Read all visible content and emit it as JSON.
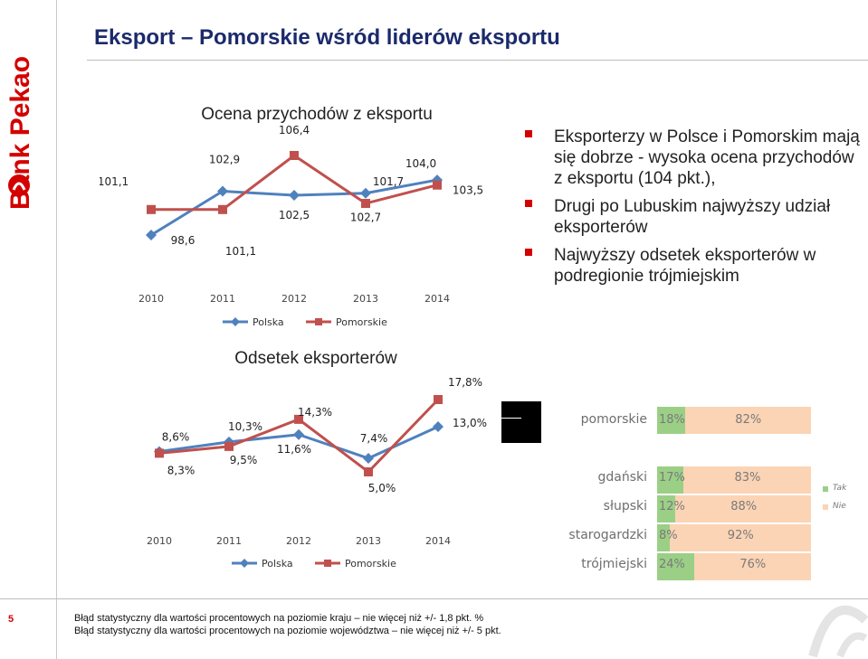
{
  "brand": {
    "name": "Bank Pekao"
  },
  "page": {
    "title": "Eksport – Pomorskie wśród liderów eksportu",
    "number": "5"
  },
  "bullets": [
    "Eksporterzy w Polsce i Pomorskim mają się dobrze - wysoka ocena przychodów z eksportu (104 pkt.),",
    "Drugi po Lubuskim najwyższy udział eksporterów",
    "Najwyższy odsetek eksporterów w podregionie trójmiejskim"
  ],
  "footnotes": [
    "Błąd statystyczny dla wartości procentowych na poziomie kraju – nie więcej niż +/- 1,8 pkt. %",
    "Błąd statystyczny dla wartości procentowych na poziomie województwa – nie więcej niż +/- 5 pkt."
  ],
  "colors": {
    "polska": "#4f81bd",
    "pomorskie": "#c0504d",
    "tak": "#9bcf86",
    "nie": "#fbd4b5",
    "accent": "#d40000"
  },
  "chart_data": [
    {
      "type": "line",
      "title": "Ocena przychodów z eksportu",
      "x": [
        "2010",
        "2011",
        "2012",
        "2013",
        "2014"
      ],
      "series": [
        {
          "name": "Polska",
          "values": [
            98.6,
            102.9,
            102.5,
            102.7,
            104.0
          ],
          "labels": [
            "98,6",
            "102,9",
            "102,5",
            "102,7",
            "104,0"
          ]
        },
        {
          "name": "Pomorskie",
          "values": [
            101.1,
            101.1,
            106.4,
            101.7,
            103.5
          ],
          "labels": [
            "101,1",
            "101,1",
            "106,4",
            "101,7",
            "103,5"
          ]
        }
      ],
      "legend": "bottom"
    },
    {
      "type": "line",
      "title": "Odsetek eksporterów",
      "x": [
        "2010",
        "2011",
        "2012",
        "2013",
        "2014"
      ],
      "series": [
        {
          "name": "Polska",
          "values": [
            8.6,
            10.3,
            11.6,
            7.4,
            13.0
          ],
          "labels": [
            "8,6%",
            "10,3%",
            "11,6%",
            "7,4%",
            "13,0%"
          ]
        },
        {
          "name": "Pomorskie",
          "values": [
            8.3,
            9.5,
            14.3,
            5.0,
            17.8
          ],
          "labels": [
            "8,3%",
            "9,5%",
            "14,3%",
            "5,0%",
            "17,8%"
          ]
        }
      ],
      "legend": "bottom"
    },
    {
      "type": "bar",
      "orientation": "horizontal",
      "stacked": true,
      "categories": [
        "pomorskie",
        "gdański",
        "słupski",
        "starogardzki",
        "trójmiejski"
      ],
      "series": [
        {
          "name": "Tak",
          "values": [
            18,
            17,
            12,
            8,
            24
          ],
          "labels": [
            "18%",
            "17%",
            "12%",
            "8%",
            "24%"
          ]
        },
        {
          "name": "Nie",
          "values": [
            82,
            83,
            88,
            92,
            76
          ],
          "labels": [
            "82%",
            "83%",
            "88%",
            "92%",
            "76%"
          ]
        }
      ],
      "legend": "right"
    }
  ]
}
